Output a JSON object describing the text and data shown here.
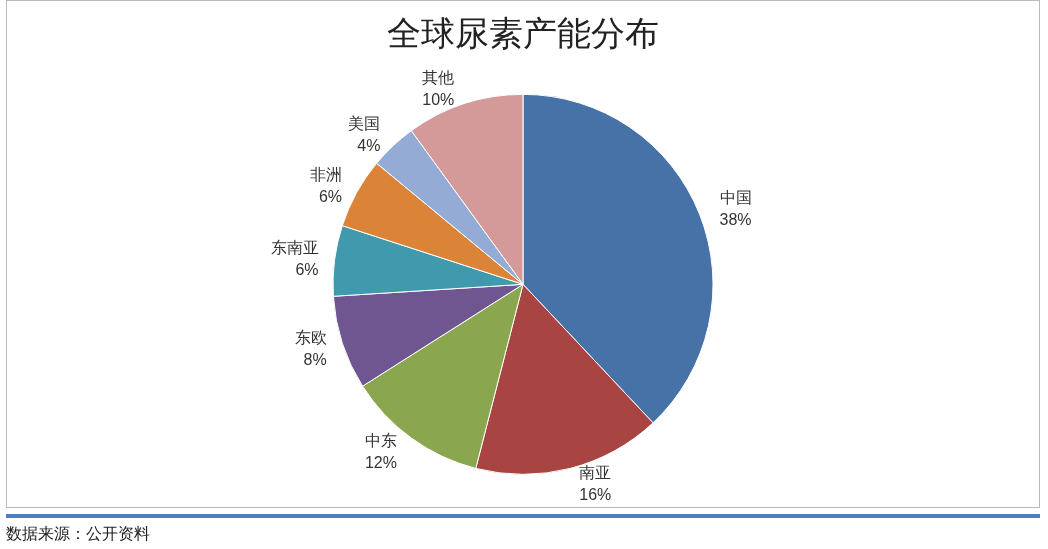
{
  "chart_data": {
    "type": "pie",
    "title": "全球尿素产能分布",
    "categories": [
      "中国",
      "南亚",
      "中东",
      "东欧",
      "东南亚",
      "非洲",
      "美国",
      "其他"
    ],
    "values": [
      38,
      16,
      12,
      8,
      6,
      6,
      4,
      10
    ],
    "colors": [
      "#4672a8",
      "#a84442",
      "#8aa64e",
      "#6f5691",
      "#4199ae",
      "#db8437",
      "#94abd6",
      "#d49a9a"
    ],
    "value_labels": [
      "38%",
      "16%",
      "12%",
      "8%",
      "6%",
      "6%",
      "4%",
      "10%"
    ],
    "legend": false,
    "annotations": [
      "数据来源：公开资料"
    ]
  }
}
